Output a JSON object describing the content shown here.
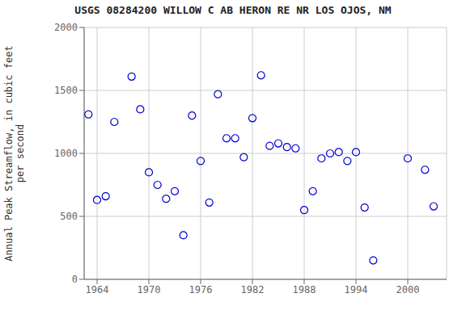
{
  "chart_data": {
    "type": "scatter",
    "title": "USGS 08284200 WILLOW C AB HERON RE NR LOS OJOS, NM",
    "ylabel": "Annual Peak Streamflow, in cubic feet\nper second",
    "x": [
      1963,
      1964,
      1965,
      1966,
      1968,
      1969,
      1970,
      1971,
      1972,
      1973,
      1974,
      1975,
      1976,
      1977,
      1978,
      1979,
      1980,
      1981,
      1982,
      1983,
      1984,
      1985,
      1986,
      1987,
      1988,
      1989,
      1990,
      1991,
      1992,
      1993,
      1994,
      1995,
      1996,
      2000,
      2002,
      2003
    ],
    "values": [
      1310,
      630,
      660,
      1250,
      1610,
      1350,
      850,
      750,
      640,
      700,
      350,
      1300,
      940,
      610,
      1470,
      1120,
      1120,
      970,
      1280,
      1620,
      1060,
      1080,
      1050,
      1040,
      550,
      700,
      960,
      1000,
      1010,
      940,
      1010,
      570,
      150,
      960,
      870,
      580
    ],
    "color": "#0000CD",
    "marker": "circle",
    "xlim": [
      1962.5,
      2004.5
    ],
    "ylim": [
      0,
      2000
    ],
    "xticks": [
      1964,
      1970,
      1976,
      1982,
      1988,
      1994,
      2000
    ],
    "yticks": [
      0,
      500,
      1000,
      1500,
      2000
    ],
    "grid": true
  }
}
